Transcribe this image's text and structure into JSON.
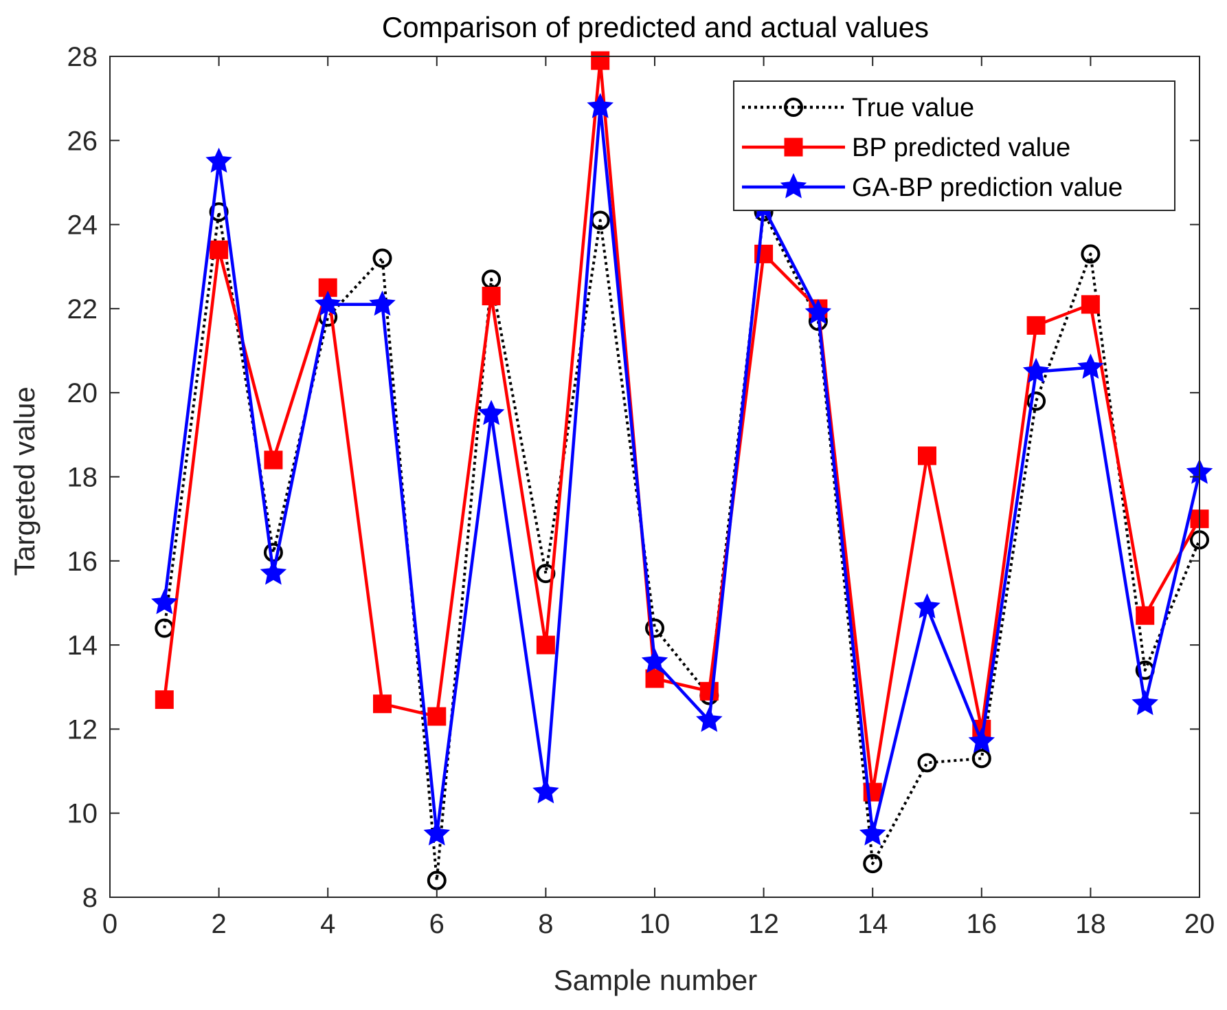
{
  "chart_data": {
    "type": "line",
    "title": "Comparison of predicted and actual values",
    "xlabel": "Sample number",
    "ylabel": "Targeted value",
    "xlim": [
      0,
      20
    ],
    "ylim": [
      8,
      28
    ],
    "xticks": [
      0,
      2,
      4,
      6,
      8,
      10,
      12,
      14,
      16,
      18,
      20
    ],
    "yticks": [
      8,
      10,
      12,
      14,
      16,
      18,
      20,
      22,
      24,
      26,
      28
    ],
    "grid": false,
    "legend_position": "top-right",
    "x": [
      1,
      2,
      3,
      4,
      5,
      6,
      7,
      8,
      9,
      10,
      11,
      12,
      13,
      14,
      15,
      16,
      17,
      18,
      19,
      20
    ],
    "series": [
      {
        "name": "True value",
        "color": "#000000",
        "marker": "circle",
        "line": "dotted",
        "values": [
          14.4,
          24.3,
          16.2,
          21.8,
          23.2,
          8.4,
          22.7,
          15.7,
          24.1,
          14.4,
          12.8,
          24.3,
          21.7,
          8.8,
          11.2,
          11.3,
          19.8,
          23.3,
          13.4,
          16.5
        ]
      },
      {
        "name": "BP predicted value",
        "color": "#ff0000",
        "marker": "square",
        "line": "solid",
        "values": [
          12.7,
          23.4,
          18.4,
          22.5,
          12.6,
          12.3,
          22.3,
          14.0,
          27.9,
          13.2,
          12.9,
          23.3,
          22.0,
          10.5,
          18.5,
          12.0,
          21.6,
          22.1,
          14.7,
          17.0
        ]
      },
      {
        "name": "GA-BP prediction value",
        "color": "#0000ff",
        "marker": "star",
        "line": "solid",
        "values": [
          15.0,
          25.5,
          15.7,
          22.1,
          22.1,
          9.5,
          19.5,
          10.5,
          26.8,
          13.6,
          12.2,
          24.4,
          21.9,
          9.5,
          14.9,
          11.7,
          20.5,
          20.6,
          12.6,
          18.1
        ]
      }
    ]
  }
}
